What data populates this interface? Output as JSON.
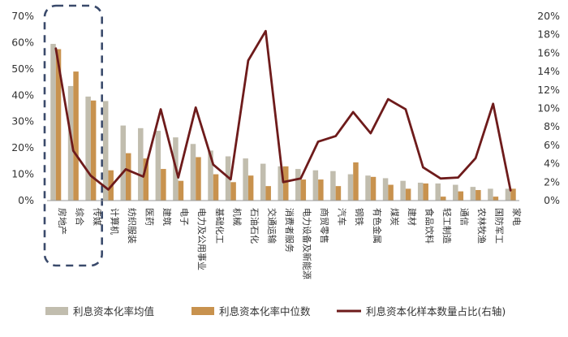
{
  "chart_data": {
    "type": "bar",
    "categories": [
      "房地产",
      "综合",
      "传媒",
      "计算机",
      "纺织服装",
      "医药",
      "建筑",
      "电子",
      "电力及公用事业",
      "基础化工",
      "机械",
      "石油石化",
      "交通运输",
      "消费者服务",
      "电力设备及新能源",
      "商贸零售",
      "汽车",
      "钢铁",
      "有色金属",
      "煤炭",
      "建材",
      "食品饮料",
      "轻工制造",
      "通信",
      "农林牧渔",
      "国防军工",
      "家电"
    ],
    "series": [
      {
        "name": "利息资本化率均值",
        "axis": "left",
        "type": "bar",
        "color": "#c1bdae",
        "values": [
          59.5,
          43.5,
          39.5,
          37.8,
          28.5,
          27.5,
          26.5,
          24.0,
          21.5,
          19.0,
          16.8,
          16.0,
          14.0,
          13.0,
          12.0,
          11.5,
          11.2,
          10.0,
          9.5,
          8.5,
          7.5,
          6.8,
          6.5,
          6.0,
          5.2,
          4.5,
          4.5
        ]
      },
      {
        "name": "利息资本化率中位数",
        "axis": "left",
        "type": "bar",
        "color": "#c8924e",
        "values": [
          57.5,
          49.0,
          38.0,
          11.5,
          18.0,
          16.0,
          12.0,
          7.5,
          16.5,
          10.0,
          7.0,
          9.5,
          5.5,
          13.0,
          8.0,
          8.0,
          5.5,
          14.5,
          9.0,
          6.0,
          4.5,
          6.5,
          1.5,
          3.5,
          4.0,
          1.5,
          4.5
        ]
      },
      {
        "name": "利息资本化样本数量占比(右轴)",
        "axis": "right",
        "type": "line",
        "color": "#6e1b1b",
        "values": [
          16.5,
          5.4,
          2.7,
          1.2,
          3.4,
          2.6,
          9.9,
          2.5,
          10.1,
          3.9,
          2.3,
          15.2,
          18.4,
          2.0,
          2.4,
          6.4,
          7.0,
          9.6,
          7.3,
          11.0,
          9.9,
          3.6,
          2.4,
          2.5,
          4.6,
          10.5,
          1.1
        ]
      }
    ],
    "y_left": {
      "min": 0,
      "max": 70,
      "ticks": [
        "0%",
        "10%",
        "20%",
        "30%",
        "40%",
        "50%",
        "60%",
        "70%"
      ]
    },
    "y_right": {
      "min": 0,
      "max": 20,
      "ticks": [
        "0%",
        "2%",
        "4%",
        "6%",
        "8%",
        "10%",
        "12%",
        "14%",
        "16%",
        "18%",
        "20%"
      ]
    },
    "highlight_categories": [
      "房地产",
      "综合",
      "传媒"
    ],
    "highlight_color": "#3a4a6b",
    "grid": false,
    "legend_position": "bottom"
  }
}
